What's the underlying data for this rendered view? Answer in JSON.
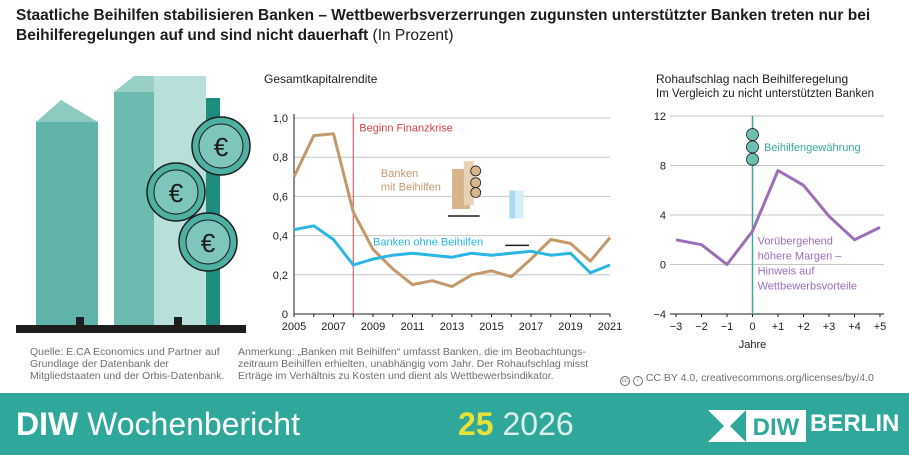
{
  "title": {
    "bold": "Staatliche Beihilfen stabilisieren Banken – Wettbewerbsverzerrungen zugunsten unterstützter Banken treten nur bei Beihilferegelungen auf und sind nicht dauerhaft",
    "unit": "(In Prozent)"
  },
  "colors": {
    "brand_teal": "#2fa89b",
    "beihilfen_brown": "#c49a6c",
    "ohne_beihilfen_blue": "#2bb6e3",
    "purple": "#9b6fb7",
    "crisis_red": "#d8414c",
    "teal_line": "#3aa89c"
  },
  "chart_data": [
    {
      "type": "line",
      "title": "Gesamtkapitalrendite",
      "x": [
        2005,
        2006,
        2007,
        2008,
        2009,
        2010,
        2011,
        2012,
        2013,
        2014,
        2015,
        2016,
        2017,
        2018,
        2019,
        2020,
        2021
      ],
      "xticks": [
        "2005",
        "2007",
        "2009",
        "2011",
        "2013",
        "2015",
        "2017",
        "2019",
        "2021"
      ],
      "yticks": [
        "0",
        "0,2",
        "0,4",
        "0,6",
        "0,8",
        "1,0"
      ],
      "ylim": [
        0,
        1.0
      ],
      "grid": "horizontal",
      "series": [
        {
          "name": "Banken mit Beihilfen",
          "label_line1": "Banken",
          "label_line2": "mit Beihilfen",
          "values": [
            0.7,
            0.91,
            0.92,
            0.52,
            0.33,
            0.23,
            0.15,
            0.17,
            0.14,
            0.2,
            0.22,
            0.19,
            0.28,
            0.38,
            0.36,
            0.27,
            0.39
          ]
        },
        {
          "name": "Banken ohne Beihilfen",
          "values": [
            0.43,
            0.45,
            0.38,
            0.25,
            0.28,
            0.3,
            0.31,
            0.3,
            0.29,
            0.31,
            0.3,
            0.31,
            0.32,
            0.3,
            0.31,
            0.21,
            0.25
          ]
        }
      ],
      "annotations": [
        {
          "text": "Beginn Finanzkrise",
          "x": 2008
        }
      ]
    },
    {
      "type": "line",
      "title": "Rohaufschlag nach Beihilferegelung",
      "subtitle": "Im Vergleich zu nicht unterstützten Banken",
      "x": [
        -3,
        -2,
        -1,
        0,
        1,
        2,
        3,
        4,
        5
      ],
      "xticks": [
        "−3",
        "−2",
        "−1",
        "0",
        "+1",
        "+2",
        "+3",
        "+4",
        "+5"
      ],
      "xlabel": "Jahre",
      "yticks": [
        "−4",
        "0",
        "4",
        "8",
        "12"
      ],
      "ylim": [
        -4,
        12
      ],
      "grid": "horizontal",
      "series": [
        {
          "name": "Rohaufschlag",
          "values": [
            2.0,
            1.6,
            0.0,
            2.7,
            7.6,
            6.4,
            3.9,
            2.0,
            3.0
          ]
        }
      ],
      "annotations": [
        {
          "text": "Beihilfengewährung",
          "x": 0
        },
        {
          "text_lines": [
            "Vorübergehend",
            "höhere Margen –",
            "Hinweis auf",
            "Wettbewerbsvorteile"
          ]
        }
      ]
    }
  ],
  "notes": {
    "source_lines": [
      "Quelle: E.CA Economics und Partner auf",
      "Grundlage der Datenbank der",
      "Mitgliedstaaten und der Orbis-Datenbank."
    ],
    "remark_lines": [
      "Anmerkung: „Banken mit Beihilfen“ umfasst Banken, die im Beobachtungs-",
      "zeitraum Beihilfen erhielten, unabhängig vom Jahr. Der Rohaufschlag misst",
      "Erträge im Verhältnis zu Kosten und dient als Wettbewerbsindikator."
    ],
    "license": "CC BY 4.0, creativecommons.org/licenses/by/4.0"
  },
  "footer": {
    "brand_bold": "DIW",
    "brand_rest": "Wochenbericht",
    "issue_number": "25",
    "issue_year": "2026",
    "logo_text": "BERLIN"
  },
  "icons": {
    "euro_coin": "euro-coin-icon",
    "cc_license": "cc-icon"
  }
}
